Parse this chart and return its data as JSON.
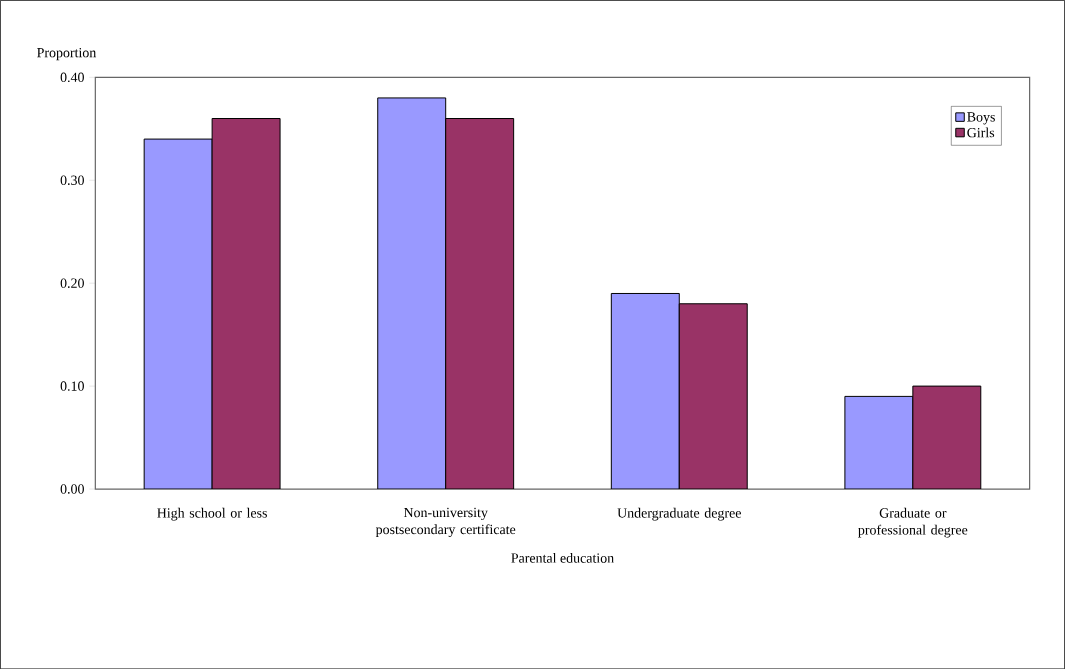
{
  "chart_data": {
    "type": "bar",
    "ylabel": "Proportion",
    "xlabel": "Parental education",
    "categories": [
      "High school or less",
      "Non-university postsecondary certificate",
      "Undergraduate degree",
      "Graduate or professional degree"
    ],
    "series": [
      {
        "name": "Boys",
        "color": "#9999ff",
        "values": [
          0.34,
          0.38,
          0.19,
          0.09
        ]
      },
      {
        "name": "Girls",
        "color": "#993366",
        "values": [
          0.36,
          0.36,
          0.18,
          0.1
        ]
      }
    ],
    "ylim": [
      0,
      0.4
    ],
    "yticks": [
      {
        "value": 0,
        "label": "0.00"
      },
      {
        "value": 0.1,
        "label": "0.10"
      },
      {
        "value": 0.2,
        "label": "0.20"
      },
      {
        "value": 0.3,
        "label": "0.30"
      },
      {
        "value": 0.4,
        "label": "0.40"
      }
    ],
    "grid": false,
    "legend": "top right"
  }
}
